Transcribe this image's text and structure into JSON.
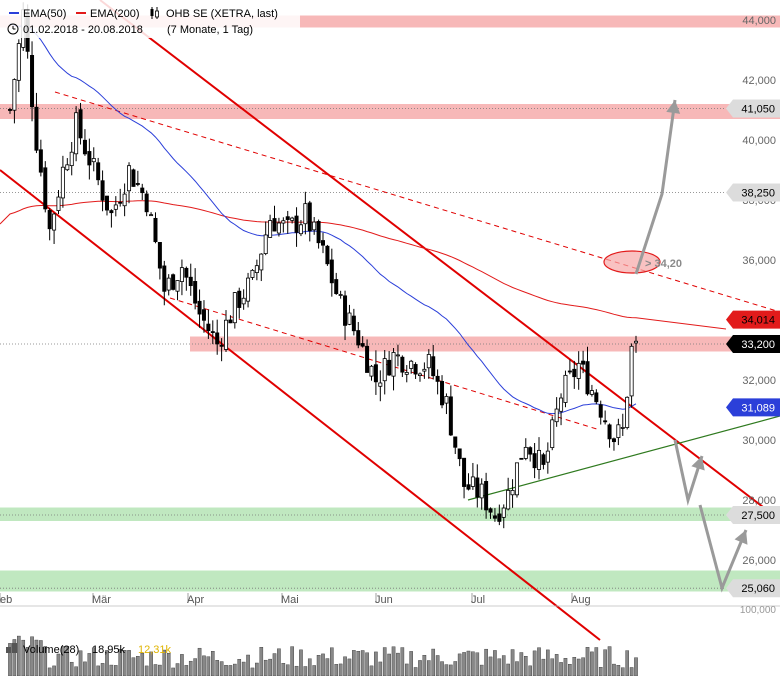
{
  "legend": {
    "ema50_label": "EMA(50)",
    "ema200_label": "EMA(200)",
    "instrument": "OHB SE (XETRA, last)",
    "date_range": "01.02.2018 - 20.08.2018",
    "period": "(7 Monate, 1 Tag)",
    "ema50_color": "#2b3fd9",
    "ema200_color": "#e21b1b"
  },
  "volume_legend": {
    "label": "Volume(28)",
    "value1": "18,95k",
    "value2": "12,31k",
    "value2_color": "#e0b400"
  },
  "annotation": "> 34,20",
  "chart_data": {
    "type": "candlestick",
    "title": "OHB SE (XETRA, last)",
    "ylim": [
      24900,
      44300
    ],
    "y_ticks": [
      26000,
      28000,
      30000,
      32000,
      34000,
      36000,
      38000,
      40000,
      42000,
      44000
    ],
    "y_tick_labels": [
      "26,000",
      "28,000",
      "30,000",
      "32,000",
      "34,000",
      "36,000",
      "38,000",
      "40,000",
      "42,000",
      "44,000"
    ],
    "x_month_labels": [
      "eb",
      "Mär",
      "Apr",
      "Mai",
      "Jun",
      "Jul",
      "Aug"
    ],
    "price_tags": [
      {
        "value": 41050,
        "label": "41,050",
        "bg": "#dcdcdc",
        "fg": "#000000"
      },
      {
        "value": 38250,
        "label": "38,250",
        "bg": "#dcdcdc",
        "fg": "#000000"
      },
      {
        "value": 34014,
        "label": "34,014",
        "bg": "#e21b1b",
        "fg": "#000000"
      },
      {
        "value": 33200,
        "label": "33,200",
        "bg": "#000000",
        "fg": "#ffffff"
      },
      {
        "value": 31089,
        "label": "31,089",
        "bg": "#2b3fd9",
        "fg": "#ffffff"
      },
      {
        "value": 27500,
        "label": "27,500",
        "bg": "#dcdcdc",
        "fg": "#000000"
      },
      {
        "value": 25060,
        "label": "25,060",
        "bg": "#dcdcdc",
        "fg": "#000000"
      }
    ],
    "resistance_zones": [
      [
        43750,
        44150
      ],
      [
        40700,
        41200
      ],
      [
        32950,
        33450
      ]
    ],
    "support_zones": [
      [
        27300,
        27750
      ],
      [
        24950,
        25650
      ]
    ],
    "volume_axis_label": "100,000",
    "trading_days": 143,
    "candles_summary": {
      "start_close": 43800,
      "high": 44500,
      "low": 27400,
      "last_close": 33200
    }
  }
}
